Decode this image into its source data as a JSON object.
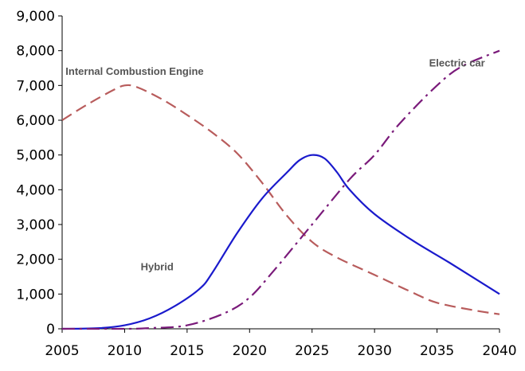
{
  "chart_data": {
    "type": "line",
    "title": "",
    "xlabel": "",
    "ylabel": "",
    "xlim": [
      2005,
      2040
    ],
    "ylim": [
      0,
      9000
    ],
    "grid": false,
    "legend": "none",
    "x_ticks": [
      "2005",
      "2010",
      "2015",
      "2020",
      "2025",
      "2030",
      "2035",
      "2040"
    ],
    "y_ticks": [
      "0",
      "1,000",
      "2,000",
      "3,000",
      "4,000",
      "5,000",
      "6,000",
      "7,000",
      "8,000",
      "9,000"
    ],
    "series": [
      {
        "name": "Internal Combustion Engine",
        "color": "#b85c5c",
        "dash": "dashed",
        "x": [
          2005,
          2007,
          2009,
          2010,
          2011,
          2013,
          2015,
          2017,
          2019,
          2021,
          2023,
          2025,
          2027,
          2030,
          2033,
          2035,
          2038,
          2040
        ],
        "y": [
          6000,
          6450,
          6850,
          7000,
          6950,
          6600,
          6150,
          5650,
          5050,
          4200,
          3250,
          2500,
          2050,
          1550,
          1050,
          750,
          530,
          420
        ]
      },
      {
        "name": "Hybrid",
        "color": "#1a1acc",
        "dash": "solid",
        "x": [
          2005,
          2008,
          2010,
          2012,
          2014,
          2016,
          2017,
          2019,
          2021,
          2023,
          2024,
          2025,
          2026,
          2027,
          2028,
          2030,
          2033,
          2036,
          2040
        ],
        "y": [
          0,
          20,
          100,
          300,
          650,
          1150,
          1600,
          2750,
          3750,
          4500,
          4850,
          5000,
          4900,
          4500,
          4000,
          3300,
          2550,
          1900,
          1000
        ]
      },
      {
        "name": "Electric car",
        "color": "#7a1a7a",
        "dash": "dashdot",
        "x": [
          2005,
          2010,
          2012,
          2015,
          2018,
          2020,
          2022,
          2025,
          2028,
          2030,
          2032,
          2035,
          2037,
          2040
        ],
        "y": [
          0,
          0,
          20,
          100,
          450,
          900,
          1700,
          3000,
          4300,
          5000,
          5900,
          7000,
          7550,
          8000
        ]
      }
    ],
    "labels": [
      {
        "text": "Internal  Combustion  Engine",
        "x": 2010.8,
        "y": 7300
      },
      {
        "text": "Hybrid",
        "x": 2012.6,
        "y": 1680
      },
      {
        "text": "Electric  car",
        "x": 2036.6,
        "y": 7550
      }
    ]
  }
}
